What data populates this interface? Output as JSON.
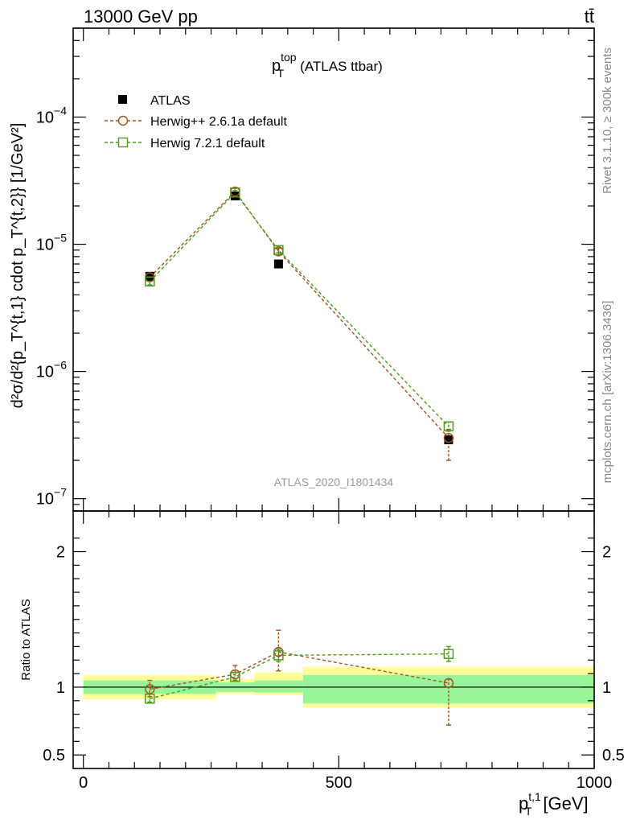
{
  "header": {
    "left": "13000 GeV pp",
    "right": "tt̄"
  },
  "side_text": {
    "rivet": "Rivet 3.1.10, ≥ 300k events",
    "mcplots": "mcplots.cern.ch [arXiv:1306.3436]"
  },
  "chart_data": [
    {
      "type": "scatter",
      "title_main": "p",
      "title_sup": "top",
      "title_sub": "T",
      "title_rest": "(ATLAS ttbar)",
      "watermark": "ATLAS_2020_I1801434",
      "ylabel": "d²σ/d²{p_T^{t,1} cdot p_T^{t,2}} [1/GeV²]",
      "y_scale": "log",
      "ylim": [
        8e-08,
        0.0005
      ],
      "xlim": [
        -20,
        1000
      ],
      "y_ticks": [
        {
          "value": 1e-07,
          "base": "10",
          "exp": "−7"
        },
        {
          "value": 1e-06,
          "base": "10",
          "exp": "−6"
        },
        {
          "value": 1e-05,
          "base": "10",
          "exp": "−5"
        },
        {
          "value": 0.0001,
          "base": "10",
          "exp": "−4"
        }
      ],
      "legend_position": "top-left",
      "series": [
        {
          "name": "ATLAS",
          "color": "#000000",
          "marker": "filled-square",
          "x": [
            130,
            297,
            382,
            715
          ],
          "y": [
            5.6e-06,
            2.4e-05,
            7e-06,
            2.9e-07
          ],
          "band_edges": [
            0,
            260,
            335,
            430,
            1000
          ],
          "band_inner": [
            [
              0.95,
              1.05
            ],
            [
              0.965,
              1.035
            ],
            [
              0.96,
              1.05
            ],
            [
              0.88,
              1.09
            ]
          ],
          "band_outer": [
            [
              0.91,
              1.09
            ],
            [
              0.95,
              1.06
            ],
            [
              0.94,
              1.11
            ],
            [
              0.85,
              1.15
            ]
          ]
        },
        {
          "name": "Herwig++ 2.6.1a default",
          "color": "#a0521d",
          "marker": "open-circle",
          "x": [
            130,
            297,
            382,
            715
          ],
          "y": [
            5.5e-06,
            2.6e-05,
            8.8e-06,
            3e-07
          ],
          "yerr_lo": [
            5.2e-06,
            2.5e-05,
            8.3e-06,
            2e-07
          ],
          "yerr_hi": [
            5.8e-06,
            2.75e-05,
            9.3e-06,
            3.5e-07
          ]
        },
        {
          "name": "Herwig 7.2.1 default",
          "color": "#4e9a1a",
          "marker": "open-square",
          "x": [
            130,
            297,
            382,
            715
          ],
          "y": [
            5.1e-06,
            2.55e-05,
            9e-06,
            3.7e-07
          ],
          "yerr_lo": [
            4.8e-06,
            2.45e-05,
            8.6e-06,
            3.4e-07
          ],
          "yerr_hi": [
            5.4e-06,
            2.65e-05,
            9.5e-06,
            4e-07
          ]
        }
      ]
    },
    {
      "type": "scatter",
      "ylabel": "Ratio to ATLAS",
      "xlabel": "p_T^{t,1} [GeV]",
      "xlabel_main": "p",
      "xlabel_sup": "t,1",
      "xlabel_sub": "T",
      "xlabel_rest": "[GeV]",
      "ylim": [
        0.4,
        2.3
      ],
      "xlim": [
        -20,
        1000
      ],
      "y_ticks": [
        {
          "value": 0.5,
          "label": "0.5"
        },
        {
          "value": 1,
          "label": "1"
        },
        {
          "value": 2,
          "label": "2"
        }
      ],
      "x_ticks": [
        {
          "value": 0,
          "label": "0"
        },
        {
          "value": 500,
          "label": "500"
        },
        {
          "value": 1000,
          "label": "1000"
        }
      ],
      "series": [
        {
          "name": "Herwig++ 2.6.1a default",
          "color": "#a0521d",
          "x": [
            130,
            297,
            382,
            715
          ],
          "y": [
            0.985,
            1.095,
            1.26,
            1.03
          ],
          "yerr_lo": [
            0.93,
            1.05,
            1.12,
            0.72
          ],
          "yerr_hi": [
            1.05,
            1.16,
            1.42,
            1.06
          ]
        },
        {
          "name": "Herwig 7.2.1 default",
          "color": "#4e9a1a",
          "x": [
            130,
            297,
            382,
            715
          ],
          "y": [
            0.915,
            1.075,
            1.235,
            1.245
          ],
          "yerr_lo": [
            0.89,
            1.05,
            1.19,
            1.19
          ],
          "yerr_hi": [
            0.95,
            1.11,
            1.28,
            1.3
          ]
        }
      ]
    }
  ]
}
